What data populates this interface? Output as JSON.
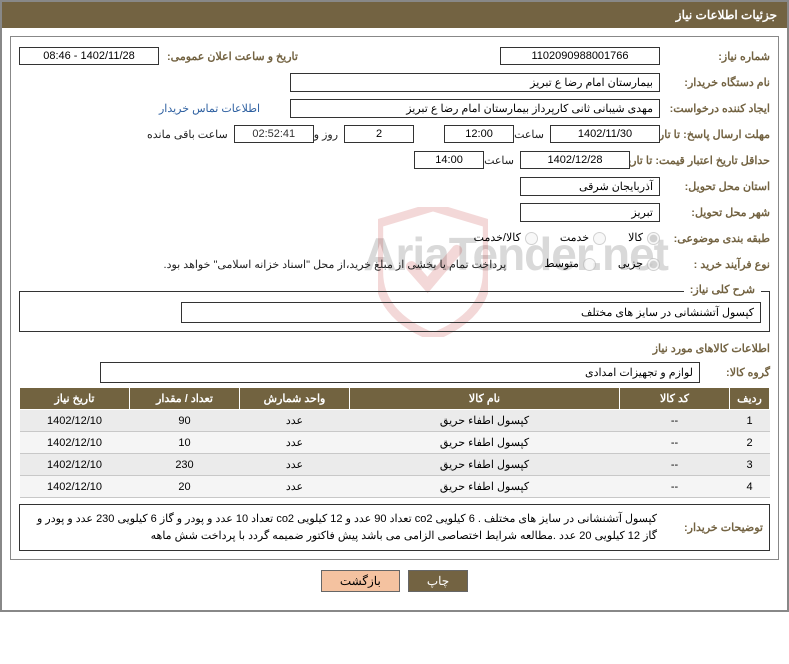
{
  "header_title": "جزئیات اطلاعات نیاز",
  "labels": {
    "need_no": "شماره نیاز:",
    "announce_dt": "تاریخ و ساعت اعلان عمومی:",
    "buyer_org": "نام دستگاه خریدار:",
    "requester": "ایجاد کننده درخواست:",
    "contact_link": "اطلاعات تماس خریدار",
    "deadline": "مهلت ارسال پاسخ: تا تاریخ:",
    "hour": "ساعت",
    "days_and": "روز و",
    "remain": "ساعت باقی مانده",
    "validity": "حداقل تاریخ اعتبار قیمت: تا تاریخ:",
    "province": "استان محل تحویل:",
    "city": "شهر محل تحویل:",
    "category": "طبقه بندی موضوعی:",
    "proc_type": "نوع فرآیند خرید :",
    "cat_goods": "کالا",
    "cat_service": "خدمت",
    "cat_both": "کالا/خدمت",
    "proc_partial": "جزیی",
    "proc_medium": "متوسط",
    "payment_note": "پرداخت تمام یا بخشی از مبلغ خرید،از محل \"اسناد خزانه اسلامی\" خواهد بود.",
    "need_desc_box": "شرح کلی نیاز:",
    "goods_section": "اطلاعات کالاهای مورد نیاز",
    "goods_group": "گروه کالا:",
    "buyer_notes": "توضیحات خریدار:"
  },
  "values": {
    "need_no": "1102090988001766",
    "announce_dt": "1402/11/28 - 08:46",
    "buyer_org": "بیمارستان امام رضا  ع  تبریز",
    "requester": "مهدی شیبانی ثانی کارپرداز بیمارستان امام رضا  ع  تبریز",
    "deadline_date": "1402/11/30",
    "deadline_time": "12:00",
    "days_left": "2",
    "timer": "02:52:41",
    "validity_date": "1402/12/28",
    "validity_time": "14:00",
    "province": "آذربایجان شرقی",
    "city": "تبریز",
    "need_desc": "کپسول آتشنشانی در سایز های مختلف",
    "goods_group": "لوازم و تجهیزات امدادی",
    "buyer_notes": "کپسول آتشنشانی در سایز های مختلف . 6 کیلویی co2 تعداد 90 عدد و 12 کیلویی co2 تعداد 10 عدد و پودر و گاز 6 کیلویی 230 عدد و پودر و گاز 12 کیلویی 20 عدد .مطالعه شرایط اختصاصی الزامی می باشد پیش فاکتور ضمیمه گردد با پرداخت شش ماهه"
  },
  "table": {
    "headers": [
      "ردیف",
      "کد کالا",
      "نام کالا",
      "واحد شمارش",
      "تعداد / مقدار",
      "تاریخ نیاز"
    ],
    "rows": [
      [
        "1",
        "--",
        "کپسول اطفاء حریق",
        "عدد",
        "90",
        "1402/12/10"
      ],
      [
        "2",
        "--",
        "کپسول اطفاء حریق",
        "عدد",
        "10",
        "1402/12/10"
      ],
      [
        "3",
        "--",
        "کپسول اطفاء حریق",
        "عدد",
        "230",
        "1402/12/10"
      ],
      [
        "4",
        "--",
        "کپسول اطفاء حریق",
        "عدد",
        "20",
        "1402/12/10"
      ]
    ],
    "col_widths": [
      "40px",
      "110px",
      "auto",
      "110px",
      "110px",
      "110px"
    ],
    "header_bg": "#726340",
    "row_bg": "#ebebeb"
  },
  "buttons": {
    "print": "چاپ",
    "back": "بازگشت"
  },
  "watermark": "AriaTender.net",
  "colors": {
    "brand": "#736342",
    "back_btn": "#f4c2a0"
  }
}
